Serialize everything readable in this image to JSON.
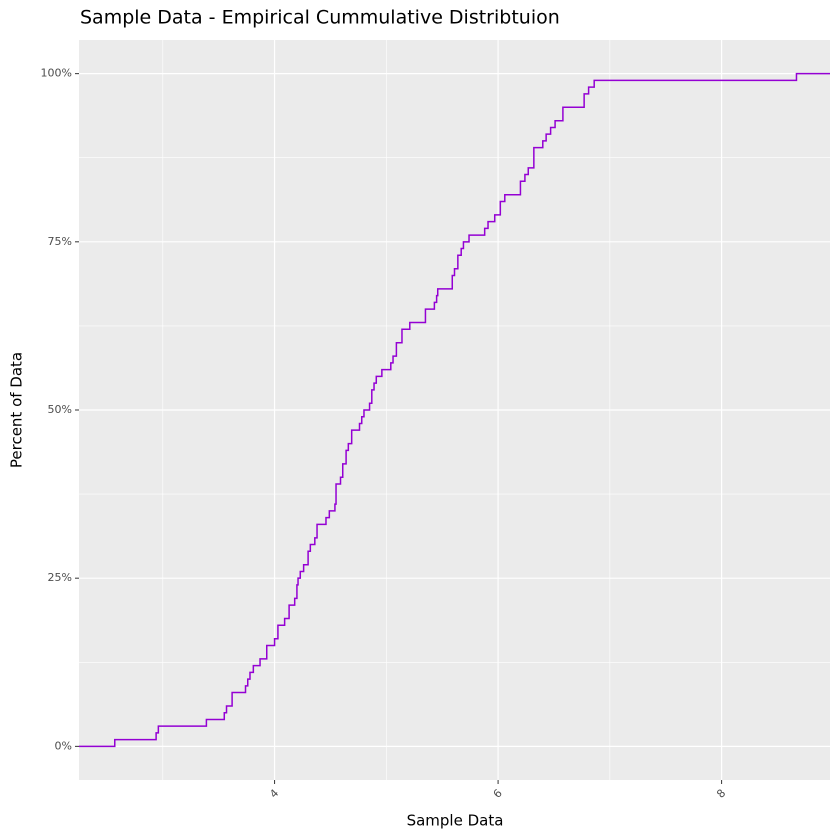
{
  "chart_data": {
    "type": "step",
    "title": "Sample Data - Empirical Cummulative Distribtuion",
    "x_label": "Sample Data",
    "y_label": "Percent of Data",
    "color": "#9400d3",
    "grid": true,
    "xlim": [
      2.25,
      8.97
    ],
    "ylim": [
      -5,
      105
    ],
    "xticks": [
      4,
      6,
      8
    ],
    "yticks": [
      {
        "value": 0,
        "label": "0%"
      },
      {
        "value": 25,
        "label": "25%"
      },
      {
        "value": 50,
        "label": "50%"
      },
      {
        "value": 75,
        "label": "75%"
      },
      {
        "value": 100,
        "label": "100%"
      }
    ],
    "x": [
      2.25,
      2.57,
      2.94,
      2.96,
      3.39,
      3.55,
      3.57,
      3.62,
      3.74,
      3.76,
      3.78,
      3.81,
      3.87,
      3.93,
      4.0,
      4.03,
      4.09,
      4.13,
      4.18,
      4.2,
      4.21,
      4.23,
      4.26,
      4.3,
      4.32,
      4.36,
      4.38,
      4.46,
      4.49,
      4.54,
      4.55,
      4.59,
      4.61,
      4.64,
      4.66,
      4.69,
      4.76,
      4.78,
      4.8,
      4.85,
      4.87,
      4.89,
      4.91,
      4.96,
      5.04,
      5.06,
      5.09,
      5.14,
      5.21,
      5.35,
      5.43,
      5.45,
      5.46,
      5.59,
      5.61,
      5.64,
      5.67,
      5.69,
      5.74,
      5.88,
      5.91,
      5.97,
      6.02,
      6.06,
      6.2,
      6.24,
      6.27,
      6.32,
      6.4,
      6.43,
      6.47,
      6.51,
      6.58,
      6.77,
      6.81,
      6.86,
      8.67,
      8.97
    ],
    "values": [
      0,
      1,
      2,
      3,
      4,
      5,
      6,
      8,
      9,
      10,
      11,
      12,
      13,
      15,
      16,
      18,
      19,
      21,
      22,
      24,
      25,
      26,
      27,
      29,
      30,
      31,
      33,
      34,
      35,
      36,
      39,
      40,
      42,
      44,
      45,
      47,
      48,
      49,
      50,
      51,
      53,
      54,
      55,
      56,
      57,
      58,
      60,
      62,
      63,
      65,
      66,
      67,
      68,
      70,
      71,
      73,
      74,
      75,
      76,
      77,
      78,
      79,
      81,
      82,
      84,
      85,
      86,
      89,
      90,
      91,
      92,
      93,
      95,
      97,
      98,
      99,
      100,
      100
    ]
  }
}
